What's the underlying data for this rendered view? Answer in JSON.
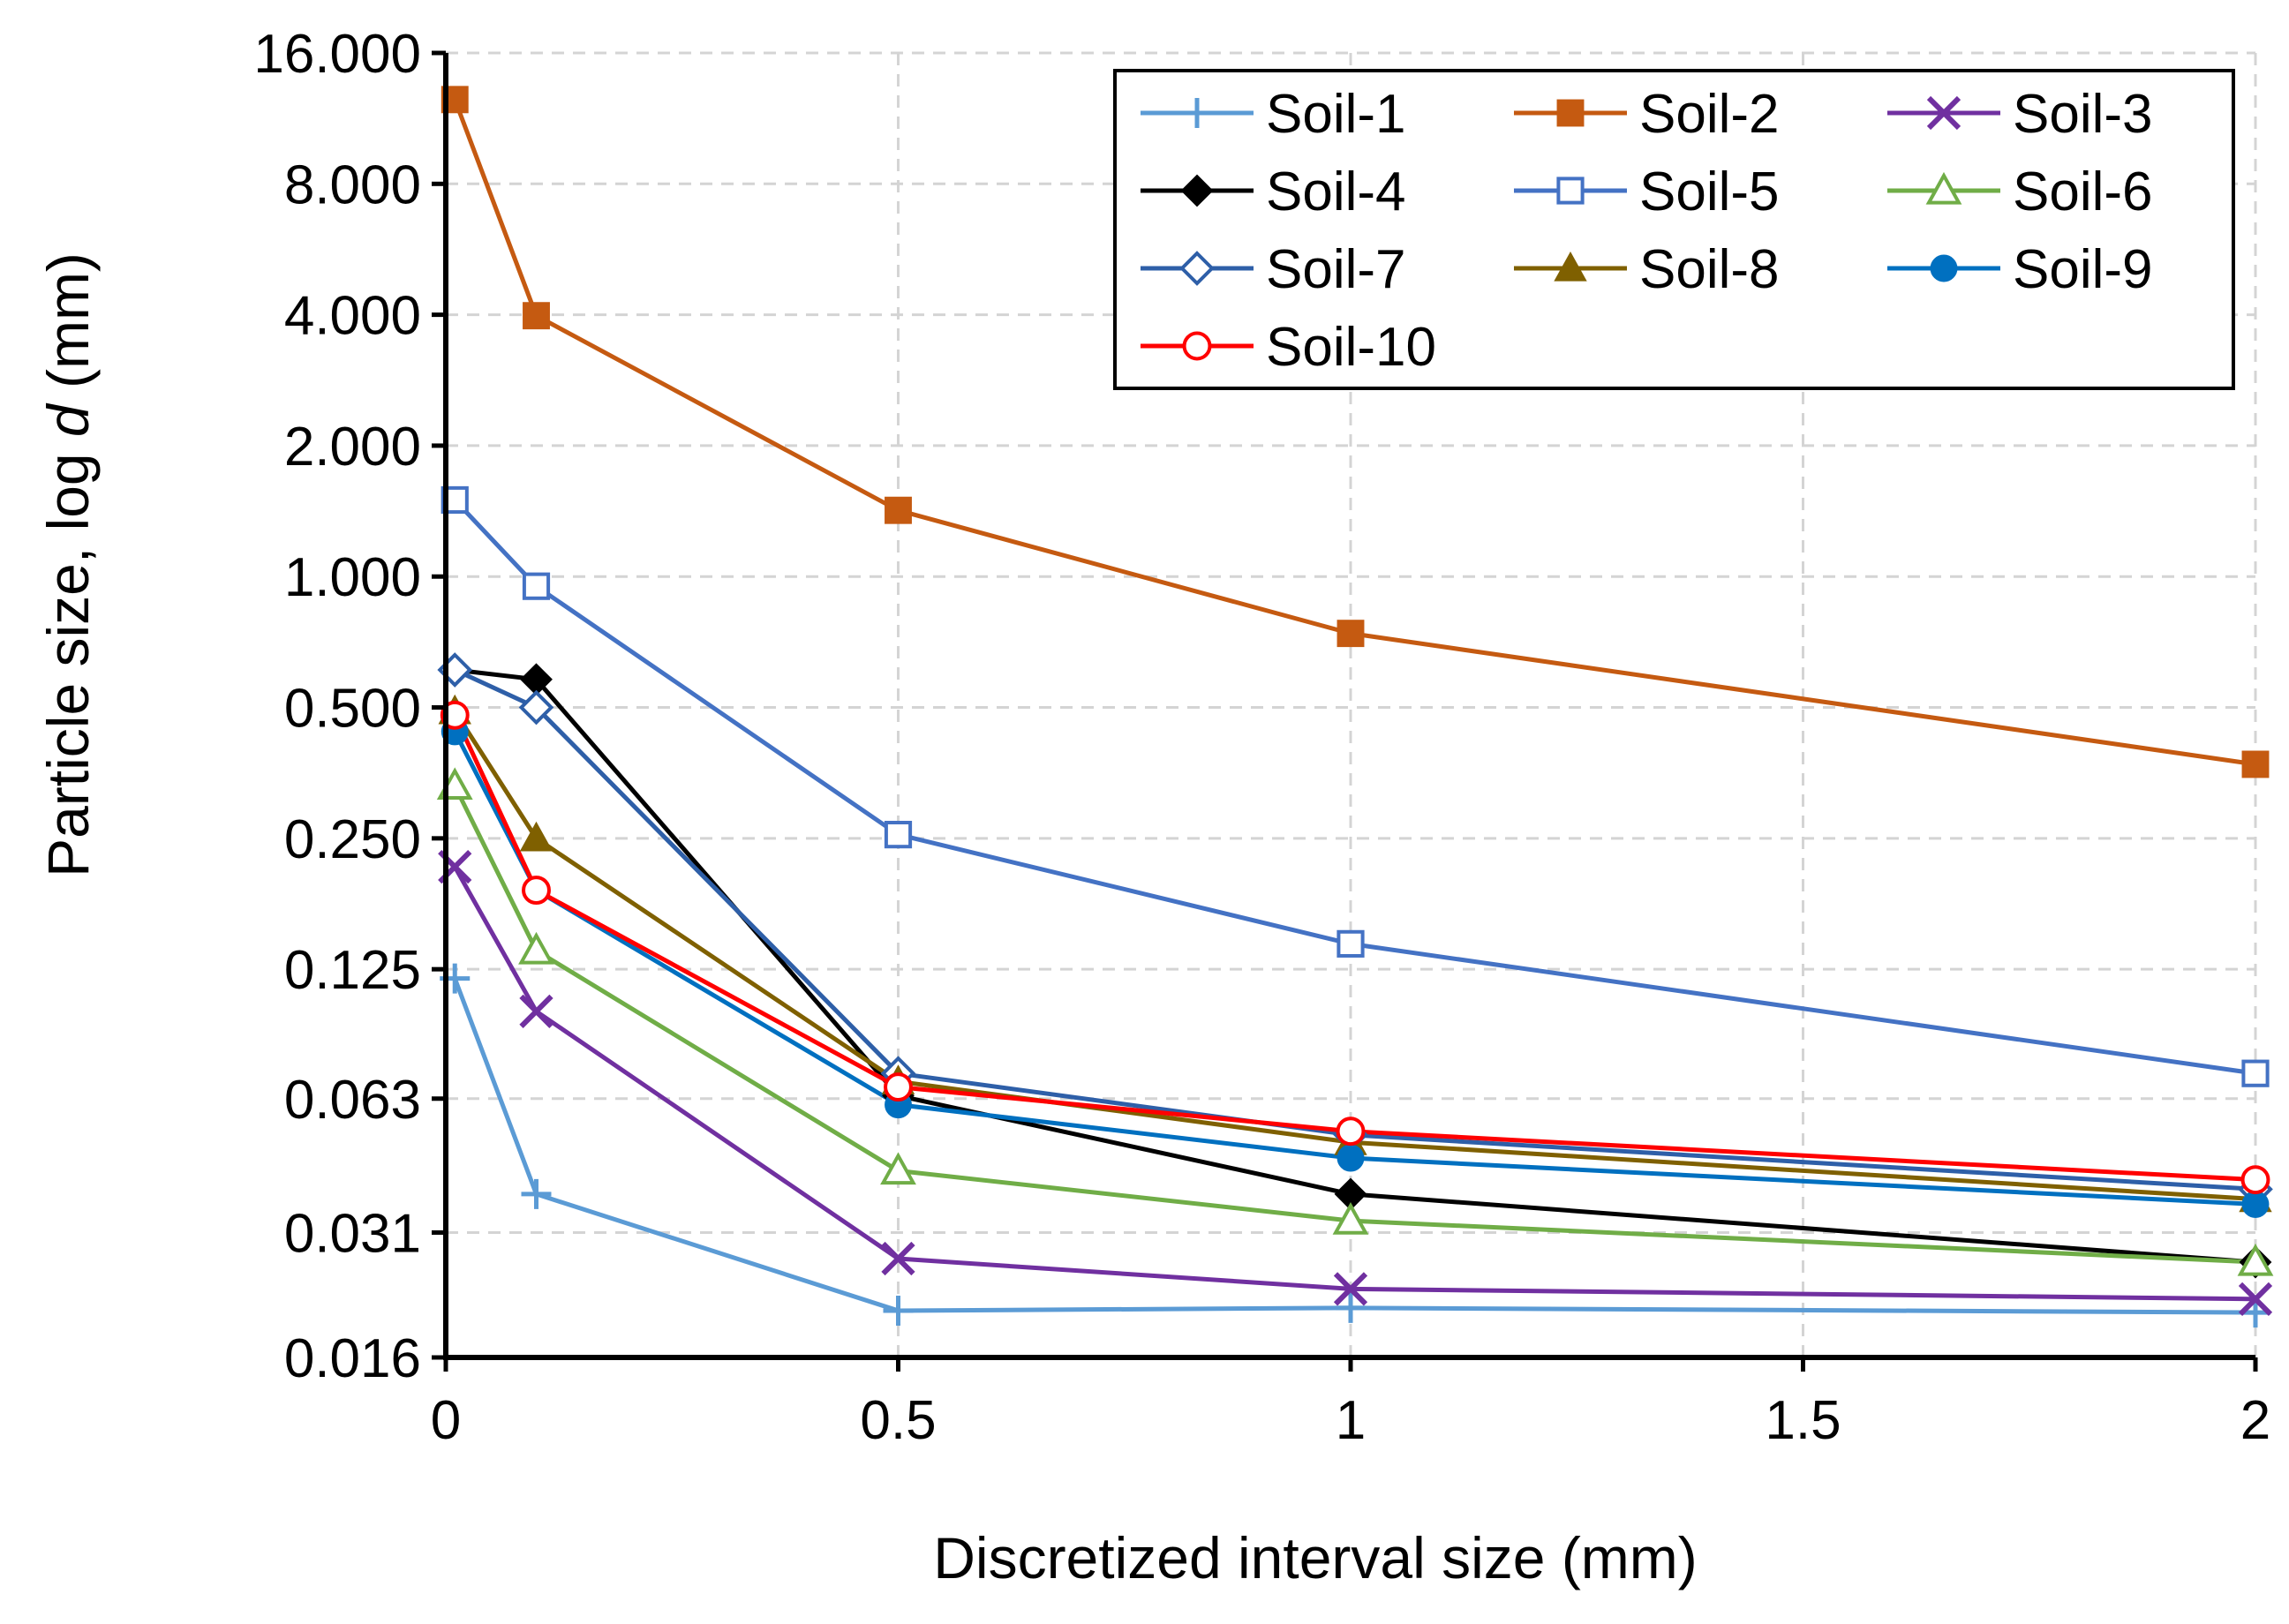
{
  "chart_data": {
    "type": "line",
    "title": "",
    "xlabel": "Discretized interval size (mm)",
    "ylabel_prefix": "Particle size, log ",
    "ylabel_italic": "d",
    "ylabel_suffix": " (mm)",
    "xlim": [
      0,
      2
    ],
    "ylim": [
      0.016,
      16
    ],
    "yscale": "log",
    "grid": true,
    "legend_position": "top-right",
    "x_ticks": [
      {
        "value": 0,
        "label": "0"
      },
      {
        "value": 0.5,
        "label": "0.5"
      },
      {
        "value": 1,
        "label": "1"
      },
      {
        "value": 1.5,
        "label": "1.5"
      },
      {
        "value": 2,
        "label": "2"
      }
    ],
    "y_ticks": [
      {
        "value": 0.016,
        "label": "0.016"
      },
      {
        "value": 0.031,
        "label": "0.031"
      },
      {
        "value": 0.063,
        "label": "0.063"
      },
      {
        "value": 0.125,
        "label": "0.125"
      },
      {
        "value": 0.25,
        "label": "0.250"
      },
      {
        "value": 0.5,
        "label": "0.500"
      },
      {
        "value": 1,
        "label": "1.000"
      },
      {
        "value": 2,
        "label": "2.000"
      },
      {
        "value": 4,
        "label": "4.000"
      },
      {
        "value": 8,
        "label": "8.000"
      },
      {
        "value": 16,
        "label": "16.000"
      }
    ],
    "series": [
      {
        "name": "Soil-1",
        "color": "#5b9bd5",
        "marker": "plus",
        "x": [
          0.01,
          0.1,
          0.5,
          1,
          2
        ],
        "values": [
          0.119,
          0.038,
          0.0205,
          0.0208,
          0.0203
        ]
      },
      {
        "name": "Soil-2",
        "color": "#c55a11",
        "marker": "square-filled",
        "x": [
          0.01,
          0.1,
          0.5,
          1,
          2
        ],
        "values": [
          12.5,
          3.98,
          1.42,
          0.74,
          0.37
        ]
      },
      {
        "name": "Soil-3",
        "color": "#7030a0",
        "marker": "x",
        "x": [
          0.01,
          0.1,
          0.5,
          1,
          2
        ],
        "values": [
          0.215,
          0.1,
          0.027,
          0.023,
          0.0218
        ]
      },
      {
        "name": "Soil-4",
        "color": "#000000",
        "marker": "diamond-filled",
        "x": [
          0.01,
          0.1,
          0.5,
          1,
          2
        ],
        "values": [
          0.61,
          0.58,
          0.064,
          0.038,
          0.0265
        ]
      },
      {
        "name": "Soil-5",
        "color": "#4472c4",
        "marker": "square-open",
        "x": [
          0.01,
          0.1,
          0.5,
          1,
          2
        ],
        "values": [
          1.5,
          0.95,
          0.255,
          0.143,
          0.072
        ]
      },
      {
        "name": "Soil-6",
        "color": "#70ad47",
        "marker": "triangle-open",
        "x": [
          0.01,
          0.1,
          0.5,
          1,
          2
        ],
        "values": [
          0.33,
          0.138,
          0.043,
          0.033,
          0.0265
        ]
      },
      {
        "name": "Soil-7",
        "color": "#2e5fa8",
        "marker": "diamond-open",
        "x": [
          0.01,
          0.1,
          0.5,
          1,
          2
        ],
        "values": [
          0.61,
          0.5,
          0.072,
          0.052,
          0.039
        ]
      },
      {
        "name": "Soil-8",
        "color": "#7f6000",
        "marker": "triangle-filled",
        "x": [
          0.01,
          0.1,
          0.5,
          1,
          2
        ],
        "values": [
          0.49,
          0.25,
          0.069,
          0.05,
          0.037
        ]
      },
      {
        "name": "Soil-9",
        "color": "#0070c0",
        "marker": "circle-filled",
        "x": [
          0.01,
          0.1,
          0.5,
          1,
          2
        ],
        "values": [
          0.44,
          0.19,
          0.061,
          0.046,
          0.036
        ]
      },
      {
        "name": "Soil-10",
        "color": "#ff0000",
        "marker": "circle-open",
        "x": [
          0.01,
          0.1,
          0.5,
          1,
          2
        ],
        "values": [
          0.48,
          0.19,
          0.067,
          0.053,
          0.041
        ]
      }
    ]
  }
}
